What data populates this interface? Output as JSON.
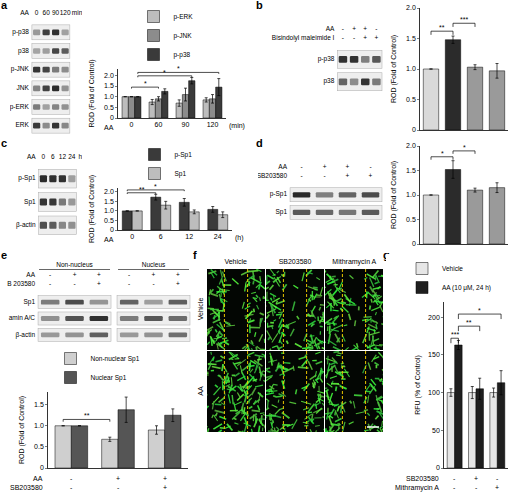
{
  "panel_labels": [
    "a",
    "b",
    "c",
    "d",
    "e",
    "f",
    "g"
  ],
  "chart_data": [
    {
      "panel": "a",
      "type": "bar",
      "categories": [
        "0",
        "60",
        "90",
        "120"
      ],
      "x_label": "AA",
      "x_unit": "(min)",
      "y_label": "ROD (Fold of Control)",
      "ylim": [
        0,
        2.3
      ],
      "yticks": [
        0,
        0.5,
        {
          "value": 1,
          "label": "1.0"
        },
        1.5,
        {
          "value": 2,
          "label": "2.0"
        }
      ],
      "grid": false,
      "legend": "top",
      "series": [
        {
          "name": "p-ERK",
          "color": "#bdbdbd",
          "values": [
            1,
            0.75,
            0.7,
            0.85
          ],
          "errors": [
            0,
            0.12,
            0.15,
            0.1
          ]
        },
        {
          "name": "p-JNK",
          "color": "#8c8c8c",
          "values": [
            1,
            0.9,
            1.1,
            0.9
          ],
          "errors": [
            0,
            0.1,
            0.3,
            0.2
          ]
        },
        {
          "name": "p-p38",
          "color": "#3a3a3a",
          "values": [
            1,
            1.25,
            1.75,
            1.45
          ],
          "errors": [
            0,
            0.12,
            0.15,
            0.4
          ]
        }
      ],
      "annotations": [
        {
          "text": "*",
          "from": [
            0,
            2
          ],
          "to": [
            3,
            2
          ],
          "y": 2.14
        },
        {
          "text": "*",
          "from": [
            0,
            2
          ],
          "to": [
            2,
            2
          ],
          "y": 1.98
        },
        {
          "text": "*",
          "from": [
            0,
            1
          ],
          "to": [
            1,
            1
          ],
          "y": 1.45
        }
      ]
    },
    {
      "panel": "b",
      "type": "bar",
      "categories": [
        null,
        null,
        null,
        null
      ],
      "y_label": "ROD (Fold of Control)",
      "ylim": [
        0,
        2
      ],
      "yticks": [
        0,
        0.5,
        {
          "value": 1,
          "label": "1.0"
        },
        1.5,
        {
          "value": 2,
          "label": "2.0"
        }
      ],
      "grid": false,
      "values": [
        1,
        1.48,
        1.03,
        0.97
      ],
      "errors": [
        0,
        0.06,
        0.04,
        0.12
      ],
      "colors": [
        "#d9d9d9",
        "#2b2b2b",
        "#9a9a9a",
        "#9a9a9a"
      ],
      "annotations": [
        {
          "text": "**",
          "from": [
            0,
            0
          ],
          "to": [
            1,
            0
          ],
          "y": 1.62
        },
        {
          "text": "***",
          "from": [
            1,
            0
          ],
          "to": [
            2,
            0
          ],
          "y": 1.75
        }
      ]
    },
    {
      "panel": "c",
      "type": "bar",
      "categories": [
        "0",
        "6",
        "12",
        "24"
      ],
      "x_label": "AA",
      "x_unit": "(h)",
      "y_label": "ROD (Fold of Control)",
      "ylim": [
        0,
        2.2
      ],
      "yticks": [
        0,
        0.5,
        {
          "value": 1,
          "label": "1.0"
        },
        1.5,
        {
          "value": 2,
          "label": "2.0"
        }
      ],
      "grid": false,
      "legend": "top",
      "series": [
        {
          "name": "p-Sp1",
          "color": "#3a3a3a",
          "values": [
            1,
            1.72,
            1.45,
            1.08
          ],
          "errors": [
            0,
            0.15,
            0.2,
            0.15
          ]
        },
        {
          "name": "Sp1",
          "color": "#bdbdbd",
          "values": [
            1,
            1.3,
            0.95,
            0.8
          ],
          "errors": [
            0,
            0.2,
            0.1,
            0.15
          ]
        }
      ],
      "annotations": [
        {
          "text": "**",
          "from": [
            0,
            0
          ],
          "to": [
            1,
            0
          ],
          "y": 1.95
        },
        {
          "text": "*",
          "from": [
            0,
            0
          ],
          "to": [
            2,
            0
          ],
          "y": 2.1
        }
      ]
    },
    {
      "panel": "d",
      "type": "bar",
      "categories": [
        null,
        null,
        null,
        null
      ],
      "y_label": "ROD (Fold of Control)",
      "ylim": [
        0,
        2
      ],
      "yticks": [
        0,
        0.5,
        {
          "value": 1,
          "label": "1.0"
        },
        1.5,
        {
          "value": 2,
          "label": "2.0"
        }
      ],
      "grid": false,
      "values": [
        1,
        1.52,
        1.1,
        1.15
      ],
      "errors": [
        0,
        0.18,
        0.04,
        0.1
      ],
      "colors": [
        "#d9d9d9",
        "#2b2b2b",
        "#9a9a9a",
        "#9a9a9a"
      ],
      "annotations": [
        {
          "text": "*",
          "from": [
            0,
            0
          ],
          "to": [
            1,
            0
          ],
          "y": 1.78
        },
        {
          "text": "*",
          "from": [
            1,
            0
          ],
          "to": [
            2,
            0
          ],
          "y": 1.9
        }
      ]
    },
    {
      "panel": "e",
      "type": "bar",
      "categories": [
        null,
        null,
        null
      ],
      "y_label": "ROD (Fold of Control)",
      "ylim": [
        0,
        1.8
      ],
      "yticks": [
        0,
        0.5,
        {
          "value": 1,
          "label": "1.0"
        },
        1.5
      ],
      "grid": false,
      "legend": "top",
      "series": [
        {
          "name": "Non-nuclear Sp1",
          "color": "#cfcfcf",
          "values": [
            1,
            0.68,
            0.9
          ],
          "errors": [
            0,
            0.05,
            0.1
          ]
        },
        {
          "name": "Nuclear Sp1",
          "color": "#555555",
          "values": [
            1,
            1.38,
            1.25
          ],
          "errors": [
            0,
            0.3,
            0.15
          ]
        }
      ],
      "conditions": [
        {
          "name": "AA",
          "values": [
            "-",
            "+",
            "+"
          ]
        },
        {
          "name": "SB203580",
          "values": [
            "-",
            "-",
            "+"
          ]
        }
      ],
      "annotations": [
        {
          "text": "**",
          "from": [
            0,
            0
          ],
          "to": [
            1,
            0
          ],
          "y": 1.15
        }
      ]
    },
    {
      "panel": "g",
      "type": "bar",
      "categories": [
        null,
        null,
        null
      ],
      "y_label": "RFU (% of Control)",
      "ylim": [
        0,
        220
      ],
      "yticks": [
        0,
        50,
        100,
        150,
        200
      ],
      "grid": false,
      "legend": "top",
      "series": [
        {
          "name": "Vehicle",
          "color": "#e6e6e6",
          "values": [
            100,
            100,
            100
          ],
          "errors": [
            5,
            8,
            6
          ]
        },
        {
          "name": "AA (10 μM, 24 h)",
          "color": "#1f1f1f",
          "values": [
            163,
            105,
            113
          ],
          "errors": [
            6,
            14,
            16
          ]
        }
      ],
      "conditions": [
        {
          "name": "SB203580",
          "values": [
            "-",
            "+",
            "-"
          ]
        },
        {
          "name": "Mithramycin A",
          "values": [
            "-",
            "-",
            "+"
          ]
        }
      ],
      "annotations": [
        {
          "text": "***",
          "from": [
            0,
            0
          ],
          "to": [
            0,
            1
          ],
          "y": 172
        },
        {
          "text": "**",
          "from": [
            0,
            1
          ],
          "to": [
            1,
            1
          ],
          "y": 188
        },
        {
          "text": "*",
          "from": [
            0,
            1
          ],
          "to": [
            2,
            1
          ],
          "y": 204
        }
      ]
    }
  ],
  "blots": [
    {
      "panel": "a",
      "lane_header": {
        "name": "AA",
        "lanes": [
          "0",
          "60",
          "90",
          "120"
        ],
        "unit": "min"
      },
      "rows": [
        "p-p38",
        "p38",
        "p-JNK",
        "JNK",
        "p-ERK",
        "ERK"
      ]
    },
    {
      "panel": "b",
      "conditions": [
        {
          "name": "AA",
          "values": [
            "-",
            "+",
            "+",
            "-"
          ]
        },
        {
          "name": "Bisindolyl maleimide I",
          "values": [
            "-",
            "-",
            "+",
            "+"
          ]
        }
      ],
      "rows": [
        "p-p38",
        "p38"
      ]
    },
    {
      "panel": "c",
      "lane_header": {
        "name": "AA",
        "lanes": [
          "0",
          "6",
          "12",
          "24"
        ],
        "unit": "h"
      },
      "rows": [
        "p-Sp1",
        "Sp1",
        "β-actin"
      ]
    },
    {
      "panel": "d",
      "conditions": [
        {
          "name": "AA",
          "values": [
            "-",
            "+",
            "+",
            "-"
          ]
        },
        {
          "name": "SB203580",
          "values": [
            "-",
            "-",
            "+",
            "+"
          ]
        }
      ],
      "rows": [
        "p-Sp1",
        "Sp1"
      ]
    },
    {
      "panel": "e",
      "groups": [
        "Non-nucleus",
        "Nucleus"
      ],
      "conditions": [
        {
          "name": "AA",
          "values": [
            "-",
            "+",
            "+",
            "-",
            "+",
            "+"
          ]
        },
        {
          "name": "B 203580",
          "values": [
            "-",
            "-",
            "+",
            "-",
            "-",
            "+"
          ]
        }
      ],
      "rows": [
        "Sp1",
        "amin A/C",
        "β-actin"
      ]
    }
  ],
  "micrographs": {
    "panel": "f",
    "columns": [
      "Vehicle",
      "SB203580",
      "Mithramycin A"
    ],
    "rows": [
      "Vehicle",
      "AA"
    ]
  }
}
